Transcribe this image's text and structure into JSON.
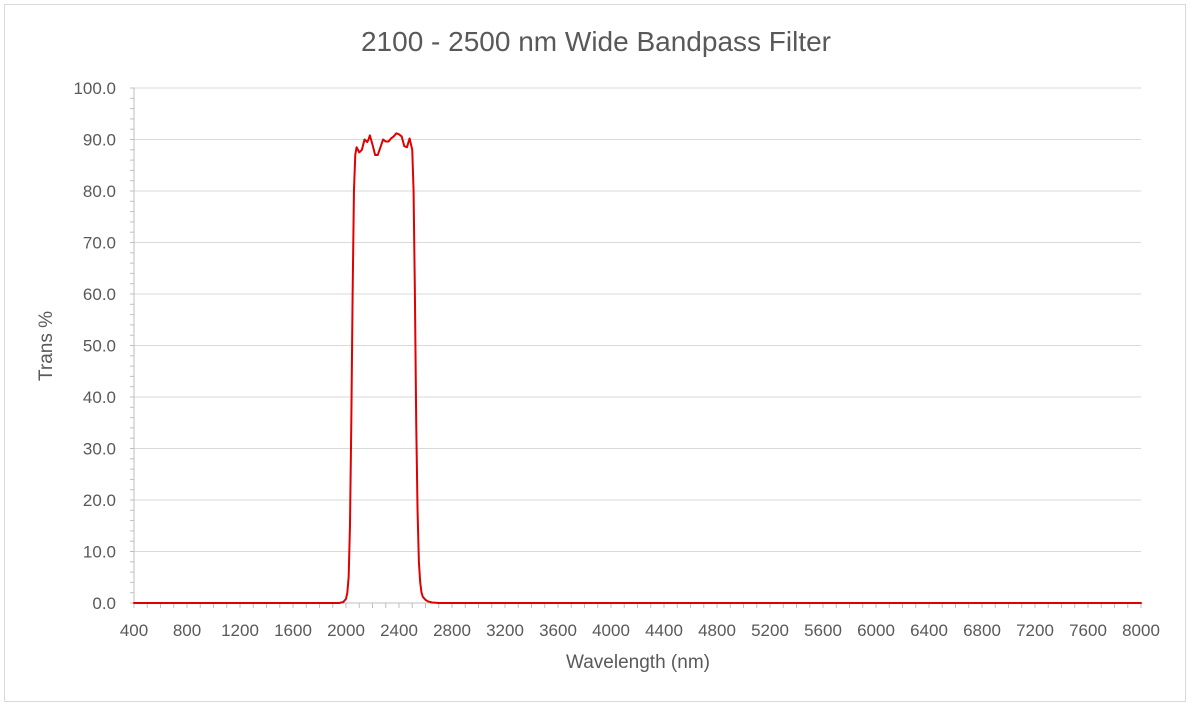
{
  "chart_data": {
    "type": "line",
    "title": "2100 - 2500 nm Wide Bandpass Filter",
    "xlabel": "Wavelength (nm)",
    "ylabel": "Trans %",
    "xlim": [
      400,
      8000
    ],
    "ylim": [
      0,
      100
    ],
    "x_ticks": [
      "400",
      "800",
      "1200",
      "1600",
      "2000",
      "2400",
      "2800",
      "3200",
      "3600",
      "4000",
      "4400",
      "4800",
      "5200",
      "5600",
      "6000",
      "6400",
      "6800",
      "7200",
      "7600",
      "8000"
    ],
    "y_ticks": [
      "0.0",
      "10.0",
      "20.0",
      "30.0",
      "40.0",
      "50.0",
      "60.0",
      "70.0",
      "80.0",
      "90.0",
      "100.0"
    ],
    "grid": "horizontal",
    "series": [
      {
        "color": "#e00000",
        "x": [
          400,
          1800,
          1950,
          1980,
          2000,
          2010,
          2020,
          2030,
          2040,
          2050,
          2060,
          2070,
          2080,
          2100,
          2120,
          2140,
          2160,
          2170,
          2180,
          2200,
          2220,
          2240,
          2260,
          2280,
          2300,
          2320,
          2340,
          2360,
          2380,
          2400,
          2420,
          2440,
          2460,
          2480,
          2500,
          2510,
          2520,
          2530,
          2540,
          2550,
          2560,
          2570,
          2580,
          2600,
          2620,
          2650,
          2700,
          2800,
          3000,
          4000,
          5000,
          6000,
          7000,
          8000
        ],
        "y": [
          0.0,
          0.0,
          0.0,
          0.2,
          0.8,
          2.0,
          5.0,
          15.0,
          35.0,
          60.0,
          80.0,
          87.0,
          88.5,
          87.5,
          88.0,
          90.0,
          89.5,
          90.0,
          90.8,
          89.0,
          87.0,
          87.0,
          88.5,
          90.0,
          89.6,
          89.6,
          90.2,
          90.6,
          91.2,
          91.0,
          90.6,
          88.7,
          88.5,
          90.2,
          88.0,
          80.0,
          60.0,
          35.0,
          18.0,
          8.0,
          4.0,
          2.0,
          1.2,
          0.6,
          0.3,
          0.1,
          0.0,
          0.0,
          0.0,
          0.0,
          0.0,
          0.0,
          0.0,
          0.0
        ]
      }
    ]
  }
}
